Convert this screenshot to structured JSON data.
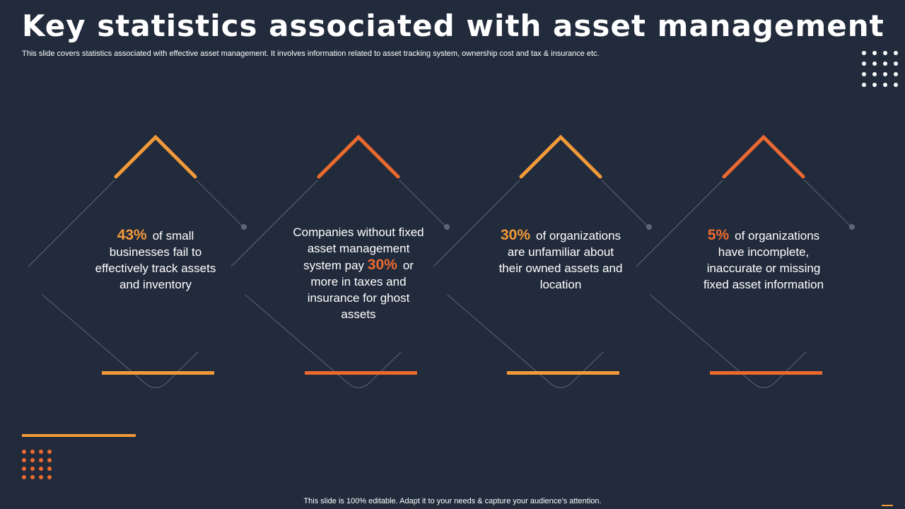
{
  "title": "Key statistics associated with asset management",
  "subtitle": "This slide covers statistics associated with effective asset management. It involves information related to asset tracking system, ownership cost and tax & insurance etc.",
  "footer": "This slide is 100% editable. Adapt it to your needs & capture your audience’s attention.",
  "colors": {
    "background": "#222b3c",
    "accent_orange": "#f39a38",
    "accent_red_orange": "#ec6a2f",
    "line_gray": "#5d6576"
  },
  "cards": [
    {
      "percent": "43%",
      "before": "",
      "after": "of small businesses fail to effectively track assets and inventory",
      "accent": "#f39a38"
    },
    {
      "percent": "30%",
      "before": "Companies without fixed asset management system pay",
      "after": "or more in taxes and insurance for ghost assets",
      "accent": "#ec6a2f"
    },
    {
      "percent": "30%",
      "before": "",
      "after": "of organizations are unfamiliar about their owned assets and location",
      "accent": "#f39a38"
    },
    {
      "percent": "5%",
      "before": "",
      "after": "of organizations have incomplete, inaccurate or missing fixed asset information",
      "accent": "#ec6a2f"
    }
  ]
}
